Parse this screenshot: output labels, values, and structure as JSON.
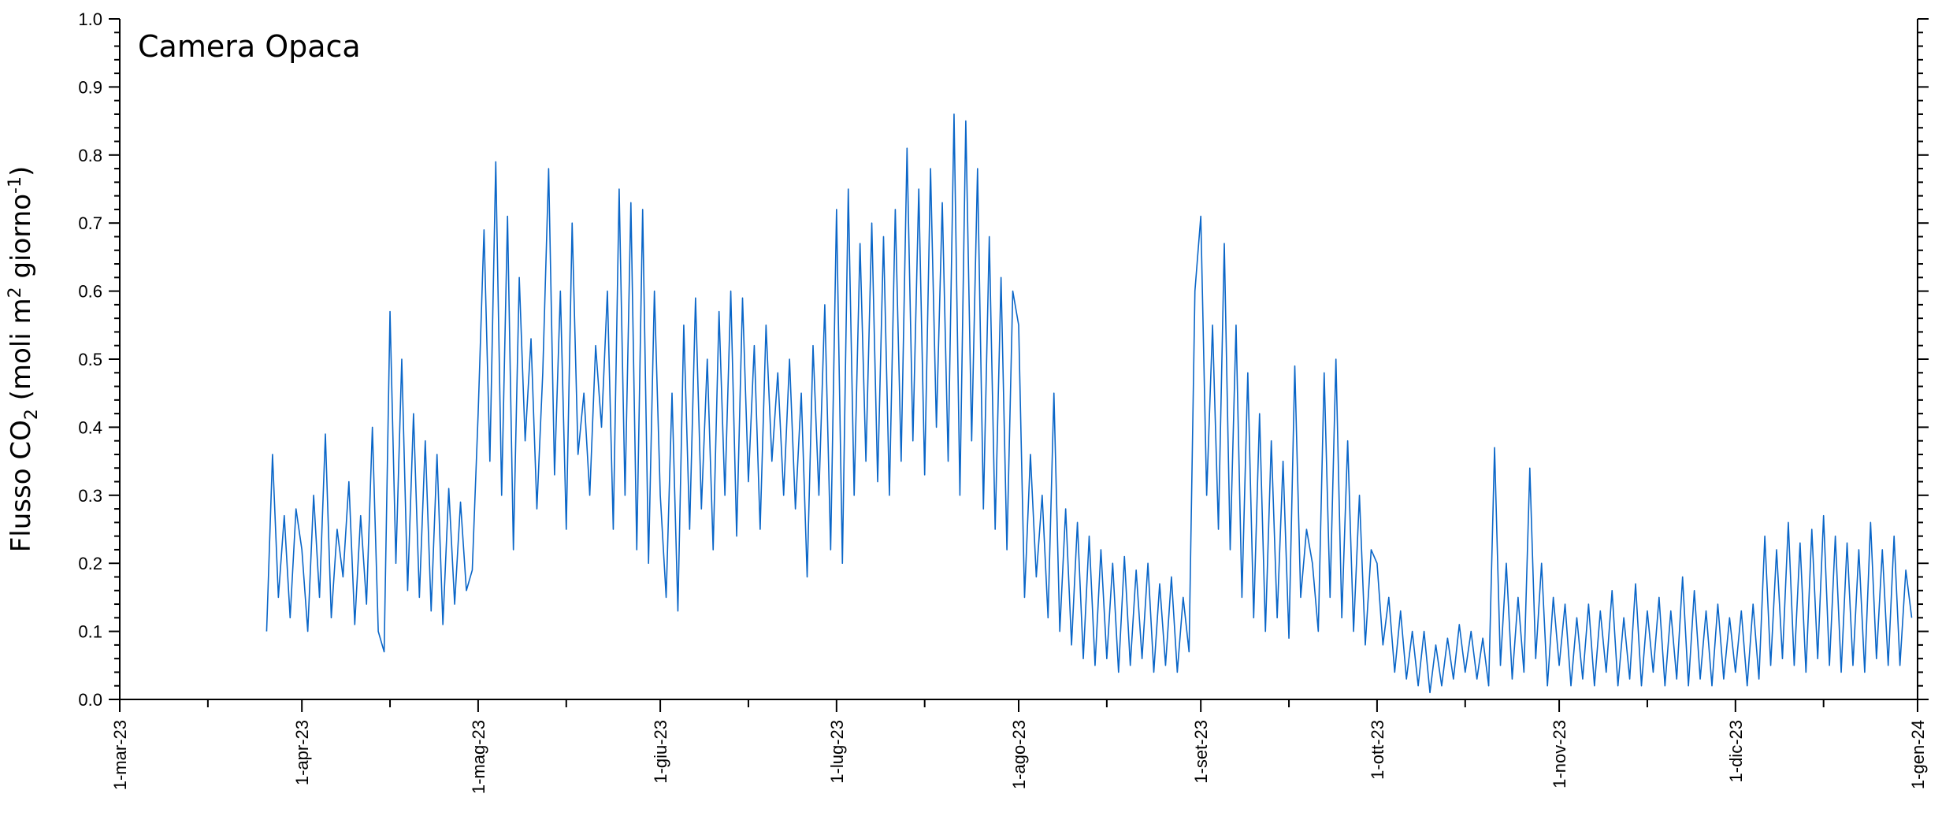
{
  "chart_data": {
    "type": "line",
    "annotation": "Camera Opaca",
    "ylabel": [
      "Flusso CO",
      "2",
      " (moli m",
      "2",
      " giorno",
      "-1",
      ")"
    ],
    "xlim": [
      "2023-03-01",
      "2024-01-01"
    ],
    "xticks": [
      {
        "value": "2023-03-01",
        "label": "1-mar-23"
      },
      {
        "value": "2023-04-01",
        "label": "1-apr-23"
      },
      {
        "value": "2023-05-01",
        "label": "1-mag-23"
      },
      {
        "value": "2023-06-01",
        "label": "1-giu-23"
      },
      {
        "value": "2023-07-01",
        "label": "1-lug-23"
      },
      {
        "value": "2023-08-01",
        "label": "1-ago-23"
      },
      {
        "value": "2023-09-01",
        "label": "1-set-23"
      },
      {
        "value": "2023-10-01",
        "label": "1-ott-23"
      },
      {
        "value": "2023-11-01",
        "label": "1-nov-23"
      },
      {
        "value": "2023-12-01",
        "label": "1-dic-23"
      },
      {
        "value": "2024-01-01",
        "label": "1-gen-24"
      }
    ],
    "xminorticks": [
      "2023-03-16",
      "2023-04-16",
      "2023-05-16",
      "2023-06-16",
      "2023-07-16",
      "2023-08-16",
      "2023-09-16",
      "2023-10-16",
      "2023-11-16",
      "2023-12-16"
    ],
    "ylim": [
      0,
      1
    ],
    "yticks": [
      {
        "value": 0,
        "label": "0.0"
      },
      0.1,
      0.2,
      0.3,
      0.4,
      0.5,
      0.6,
      0.7,
      0.8,
      0.9,
      {
        "value": 1,
        "label": "1.0"
      }
    ],
    "yminorticks": [
      0.02,
      0.04,
      0.06,
      0.08,
      0.12,
      0.14,
      0.16,
      0.18,
      0.22,
      0.24,
      0.26,
      0.28,
      0.32,
      0.34,
      0.36,
      0.38,
      0.42,
      0.44,
      0.46,
      0.48,
      0.52,
      0.54,
      0.56,
      0.58,
      0.62,
      0.64,
      0.66,
      0.68,
      0.72,
      0.74,
      0.76,
      0.78,
      0.82,
      0.84,
      0.86,
      0.88,
      0.92,
      0.94,
      0.96,
      0.98
    ],
    "x": [
      "2023-03-26",
      "2023-03-27",
      "2023-03-28",
      "2023-03-29",
      "2023-03-30",
      "2023-03-31",
      "2023-04-01",
      "2023-04-02",
      "2023-04-03",
      "2023-04-04",
      "2023-04-05",
      "2023-04-06",
      "2023-04-07",
      "2023-04-08",
      "2023-04-09",
      "2023-04-10",
      "2023-04-11",
      "2023-04-12",
      "2023-04-13",
      "2023-04-14",
      "2023-04-15",
      "2023-04-16",
      "2023-04-17",
      "2023-04-18",
      "2023-04-19",
      "2023-04-20",
      "2023-04-21",
      "2023-04-22",
      "2023-04-23",
      "2023-04-24",
      "2023-04-25",
      "2023-04-26",
      "2023-04-27",
      "2023-04-28",
      "2023-04-29",
      "2023-04-30",
      "2023-05-01",
      "2023-05-02",
      "2023-05-03",
      "2023-05-04",
      "2023-05-05",
      "2023-05-06",
      "2023-05-07",
      "2023-05-08",
      "2023-05-09",
      "2023-05-10",
      "2023-05-11",
      "2023-05-12",
      "2023-05-13",
      "2023-05-14",
      "2023-05-15",
      "2023-05-16",
      "2023-05-17",
      "2023-05-18",
      "2023-05-19",
      "2023-05-20",
      "2023-05-21",
      "2023-05-22",
      "2023-05-23",
      "2023-05-24",
      "2023-05-25",
      "2023-05-26",
      "2023-05-27",
      "2023-05-28",
      "2023-05-29",
      "2023-05-30",
      "2023-05-31",
      "2023-06-01",
      "2023-06-02",
      "2023-06-03",
      "2023-06-04",
      "2023-06-05",
      "2023-06-06",
      "2023-06-07",
      "2023-06-08",
      "2023-06-09",
      "2023-06-10",
      "2023-06-11",
      "2023-06-12",
      "2023-06-13",
      "2023-06-14",
      "2023-06-15",
      "2023-06-16",
      "2023-06-17",
      "2023-06-18",
      "2023-06-19",
      "2023-06-20",
      "2023-06-21",
      "2023-06-22",
      "2023-06-23",
      "2023-06-24",
      "2023-06-25",
      "2023-06-26",
      "2023-06-27",
      "2023-06-28",
      "2023-06-29",
      "2023-06-30",
      "2023-07-01",
      "2023-07-02",
      "2023-07-03",
      "2023-07-04",
      "2023-07-05",
      "2023-07-06",
      "2023-07-07",
      "2023-07-08",
      "2023-07-09",
      "2023-07-10",
      "2023-07-11",
      "2023-07-12",
      "2023-07-13",
      "2023-07-14",
      "2023-07-15",
      "2023-07-16",
      "2023-07-17",
      "2023-07-18",
      "2023-07-19",
      "2023-07-20",
      "2023-07-21",
      "2023-07-22",
      "2023-07-23",
      "2023-07-24",
      "2023-07-25",
      "2023-07-26",
      "2023-07-27",
      "2023-07-28",
      "2023-07-29",
      "2023-07-30",
      "2023-07-31",
      "2023-08-01",
      "2023-08-02",
      "2023-08-03",
      "2023-08-04",
      "2023-08-05",
      "2023-08-06",
      "2023-08-07",
      "2023-08-08",
      "2023-08-09",
      "2023-08-10",
      "2023-08-11",
      "2023-08-12",
      "2023-08-13",
      "2023-08-14",
      "2023-08-15",
      "2023-08-16",
      "2023-08-17",
      "2023-08-18",
      "2023-08-19",
      "2023-08-20",
      "2023-08-21",
      "2023-08-22",
      "2023-08-23",
      "2023-08-24",
      "2023-08-25",
      "2023-08-26",
      "2023-08-27",
      "2023-08-28",
      "2023-08-29",
      "2023-08-30",
      "2023-08-31",
      "2023-09-01",
      "2023-09-02",
      "2023-09-03",
      "2023-09-04",
      "2023-09-05",
      "2023-09-06",
      "2023-09-07",
      "2023-09-08",
      "2023-09-09",
      "2023-09-10",
      "2023-09-11",
      "2023-09-12",
      "2023-09-13",
      "2023-09-14",
      "2023-09-15",
      "2023-09-16",
      "2023-09-17",
      "2023-09-18",
      "2023-09-19",
      "2023-09-20",
      "2023-09-21",
      "2023-09-22",
      "2023-09-23",
      "2023-09-24",
      "2023-09-25",
      "2023-09-26",
      "2023-09-27",
      "2023-09-28",
      "2023-09-29",
      "2023-09-30",
      "2023-10-01",
      "2023-10-02",
      "2023-10-03",
      "2023-10-04",
      "2023-10-05",
      "2023-10-06",
      "2023-10-07",
      "2023-10-08",
      "2023-10-09",
      "2023-10-10",
      "2023-10-11",
      "2023-10-12",
      "2023-10-13",
      "2023-10-14",
      "2023-10-15",
      "2023-10-16",
      "2023-10-17",
      "2023-10-18",
      "2023-10-19",
      "2023-10-20",
      "2023-10-21",
      "2023-10-22",
      "2023-10-23",
      "2023-10-24",
      "2023-10-25",
      "2023-10-26",
      "2023-10-27",
      "2023-10-28",
      "2023-10-29",
      "2023-10-30",
      "2023-10-31",
      "2023-11-01",
      "2023-11-02",
      "2023-11-03",
      "2023-11-04",
      "2023-11-05",
      "2023-11-06",
      "2023-11-07",
      "2023-11-08",
      "2023-11-09",
      "2023-11-10",
      "2023-11-11",
      "2023-11-12",
      "2023-11-13",
      "2023-11-14",
      "2023-11-15",
      "2023-11-16",
      "2023-11-17",
      "2023-11-18",
      "2023-11-19",
      "2023-11-20",
      "2023-11-21",
      "2023-11-22",
      "2023-11-23",
      "2023-11-24",
      "2023-11-25",
      "2023-11-26",
      "2023-11-27",
      "2023-11-28",
      "2023-11-29",
      "2023-11-30",
      "2023-12-01",
      "2023-12-02",
      "2023-12-03",
      "2023-12-04",
      "2023-12-05",
      "2023-12-06",
      "2023-12-07",
      "2023-12-08",
      "2023-12-09",
      "2023-12-10",
      "2023-12-11",
      "2023-12-12",
      "2023-12-13",
      "2023-12-14",
      "2023-12-15",
      "2023-12-16",
      "2023-12-17",
      "2023-12-18",
      "2023-12-19",
      "2023-12-20",
      "2023-12-21",
      "2023-12-22",
      "2023-12-23",
      "2023-12-24",
      "2023-12-25",
      "2023-12-26",
      "2023-12-27",
      "2023-12-28",
      "2023-12-29",
      "2023-12-30",
      "2023-12-31"
    ],
    "series": [
      {
        "color": "#0a66c8",
        "values": [
          0.1,
          0.36,
          0.15,
          0.27,
          0.12,
          0.28,
          0.22,
          0.1,
          0.3,
          0.15,
          0.39,
          0.12,
          0.25,
          0.18,
          0.32,
          0.11,
          0.27,
          0.14,
          0.4,
          0.1,
          0.07,
          0.57,
          0.2,
          0.5,
          0.16,
          0.42,
          0.15,
          0.38,
          0.13,
          0.36,
          0.11,
          0.31,
          0.14,
          0.29,
          0.16,
          0.19,
          0.42,
          0.69,
          0.35,
          0.79,
          0.3,
          0.71,
          0.22,
          0.62,
          0.38,
          0.53,
          0.28,
          0.48,
          0.78,
          0.33,
          0.6,
          0.25,
          0.7,
          0.36,
          0.45,
          0.3,
          0.52,
          0.4,
          0.6,
          0.25,
          0.75,
          0.3,
          0.73,
          0.22,
          0.72,
          0.2,
          0.6,
          0.3,
          0.15,
          0.45,
          0.13,
          0.55,
          0.25,
          0.59,
          0.28,
          0.5,
          0.22,
          0.57,
          0.3,
          0.6,
          0.24,
          0.59,
          0.32,
          0.52,
          0.25,
          0.55,
          0.35,
          0.48,
          0.3,
          0.5,
          0.28,
          0.45,
          0.18,
          0.52,
          0.3,
          0.58,
          0.22,
          0.72,
          0.2,
          0.75,
          0.3,
          0.67,
          0.35,
          0.7,
          0.32,
          0.68,
          0.3,
          0.72,
          0.35,
          0.81,
          0.38,
          0.75,
          0.33,
          0.78,
          0.4,
          0.73,
          0.35,
          0.86,
          0.3,
          0.85,
          0.38,
          0.78,
          0.28,
          0.68,
          0.25,
          0.62,
          0.22,
          0.6,
          0.55,
          0.15,
          0.36,
          0.18,
          0.3,
          0.12,
          0.45,
          0.1,
          0.28,
          0.08,
          0.26,
          0.06,
          0.24,
          0.05,
          0.22,
          0.06,
          0.2,
          0.04,
          0.21,
          0.05,
          0.19,
          0.06,
          0.2,
          0.04,
          0.17,
          0.05,
          0.18,
          0.04,
          0.15,
          0.07,
          0.6,
          0.71,
          0.3,
          0.55,
          0.25,
          0.67,
          0.22,
          0.55,
          0.15,
          0.48,
          0.12,
          0.42,
          0.1,
          0.38,
          0.12,
          0.35,
          0.09,
          0.49,
          0.15,
          0.25,
          0.2,
          0.1,
          0.48,
          0.15,
          0.5,
          0.12,
          0.38,
          0.1,
          0.3,
          0.08,
          0.22,
          0.2,
          0.08,
          0.15,
          0.04,
          0.13,
          0.03,
          0.1,
          0.02,
          0.1,
          0.01,
          0.08,
          0.02,
          0.09,
          0.03,
          0.11,
          0.04,
          0.1,
          0.03,
          0.09,
          0.02,
          0.37,
          0.05,
          0.2,
          0.03,
          0.15,
          0.04,
          0.34,
          0.06,
          0.2,
          0.02,
          0.15,
          0.05,
          0.14,
          0.02,
          0.12,
          0.03,
          0.14,
          0.02,
          0.13,
          0.04,
          0.16,
          0.02,
          0.12,
          0.03,
          0.17,
          0.02,
          0.13,
          0.04,
          0.15,
          0.02,
          0.13,
          0.03,
          0.18,
          0.02,
          0.16,
          0.03,
          0.13,
          0.02,
          0.14,
          0.03,
          0.12,
          0.04,
          0.13,
          0.02,
          0.14,
          0.03,
          0.24,
          0.05,
          0.22,
          0.06,
          0.26,
          0.05,
          0.23,
          0.04,
          0.25,
          0.06,
          0.27,
          0.05,
          0.24,
          0.04,
          0.23,
          0.05,
          0.22,
          0.04,
          0.26,
          0.06,
          0.22,
          0.05,
          0.24,
          0.05,
          0.19,
          0.12
        ]
      }
    ]
  }
}
